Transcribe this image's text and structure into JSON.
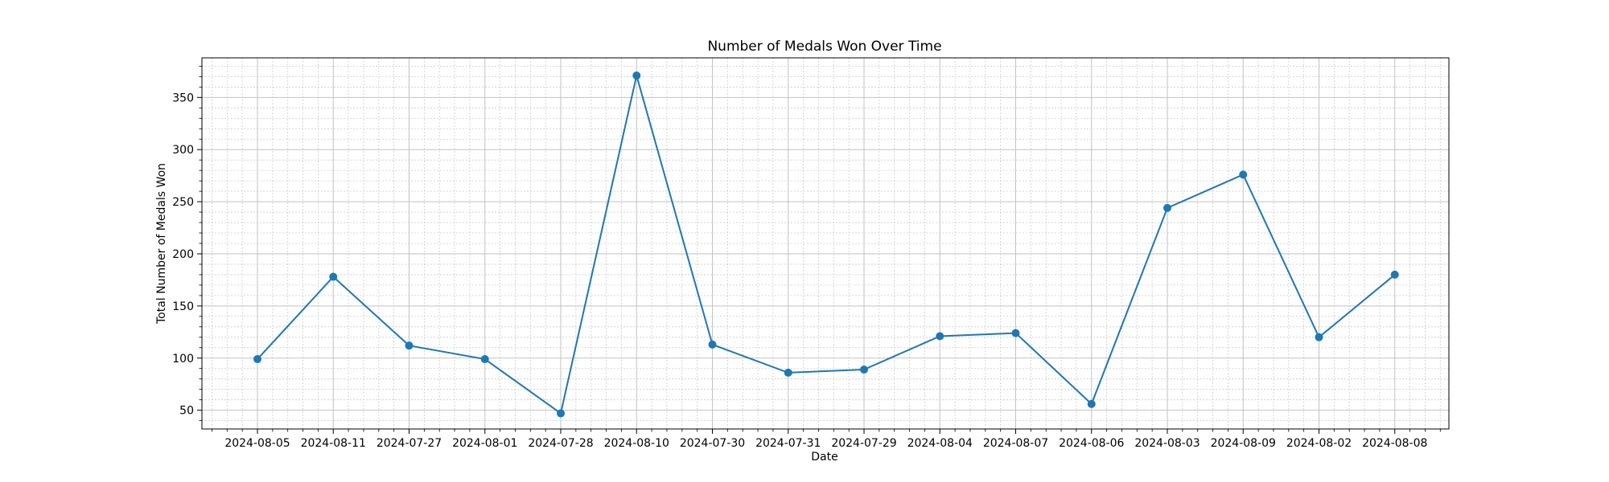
{
  "chart_data": {
    "type": "line",
    "title": "Number of Medals Won Over Time",
    "xlabel": "Date",
    "ylabel": "Total Number of Medals Won",
    "categories": [
      "2024-08-05",
      "2024-08-11",
      "2024-07-27",
      "2024-08-01",
      "2024-07-28",
      "2024-08-10",
      "2024-07-30",
      "2024-07-31",
      "2024-07-29",
      "2024-08-04",
      "2024-08-07",
      "2024-08-06",
      "2024-08-03",
      "2024-08-09",
      "2024-08-02",
      "2024-08-08"
    ],
    "series": [
      {
        "values": [
          99,
          178,
          112,
          99,
          47,
          371,
          113,
          86,
          89,
          121,
          124,
          56,
          244,
          276,
          120,
          180
        ]
      }
    ],
    "ylim": [
      32,
      388
    ],
    "yticks": [
      50,
      100,
      150,
      200,
      250,
      300,
      350
    ],
    "grid": true,
    "minor_grid": true,
    "marker": "circle",
    "colors": {
      "line": "#1f77b4"
    }
  }
}
